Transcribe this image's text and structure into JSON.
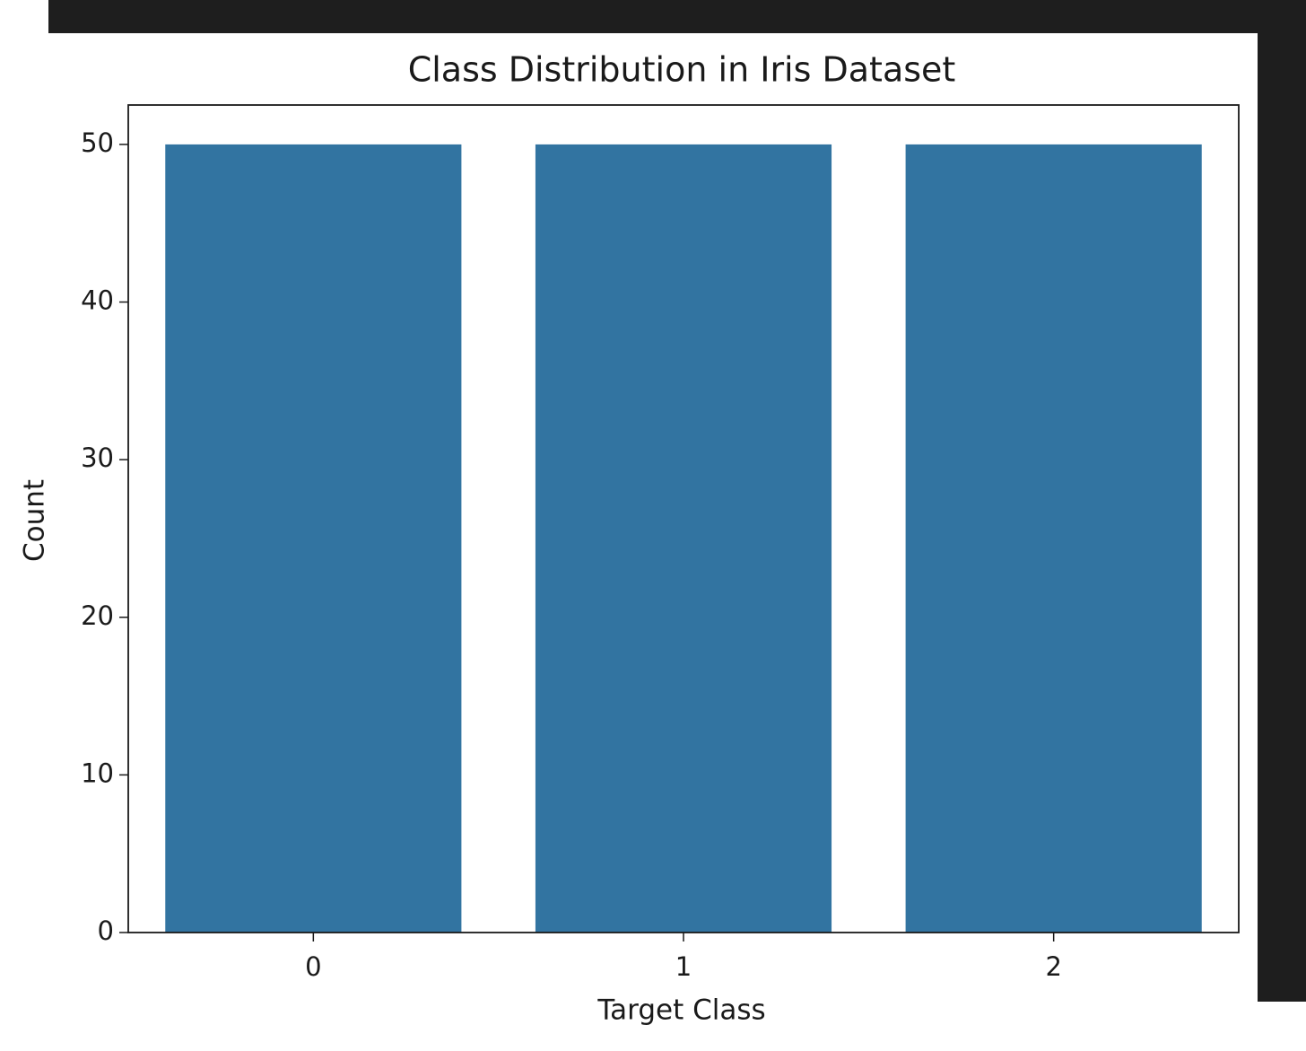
{
  "chart_data": {
    "type": "bar",
    "title": "Class Distribution in Iris Dataset",
    "x_label": "Target Class",
    "y_label": "Count",
    "categories": [
      "0",
      "1",
      "2"
    ],
    "values": [
      50,
      50,
      50
    ],
    "color": "#3274a1",
    "ylim": [
      0,
      52.5
    ],
    "yticks": [
      0,
      10,
      20,
      30,
      40,
      50
    ],
    "grid": false
  }
}
